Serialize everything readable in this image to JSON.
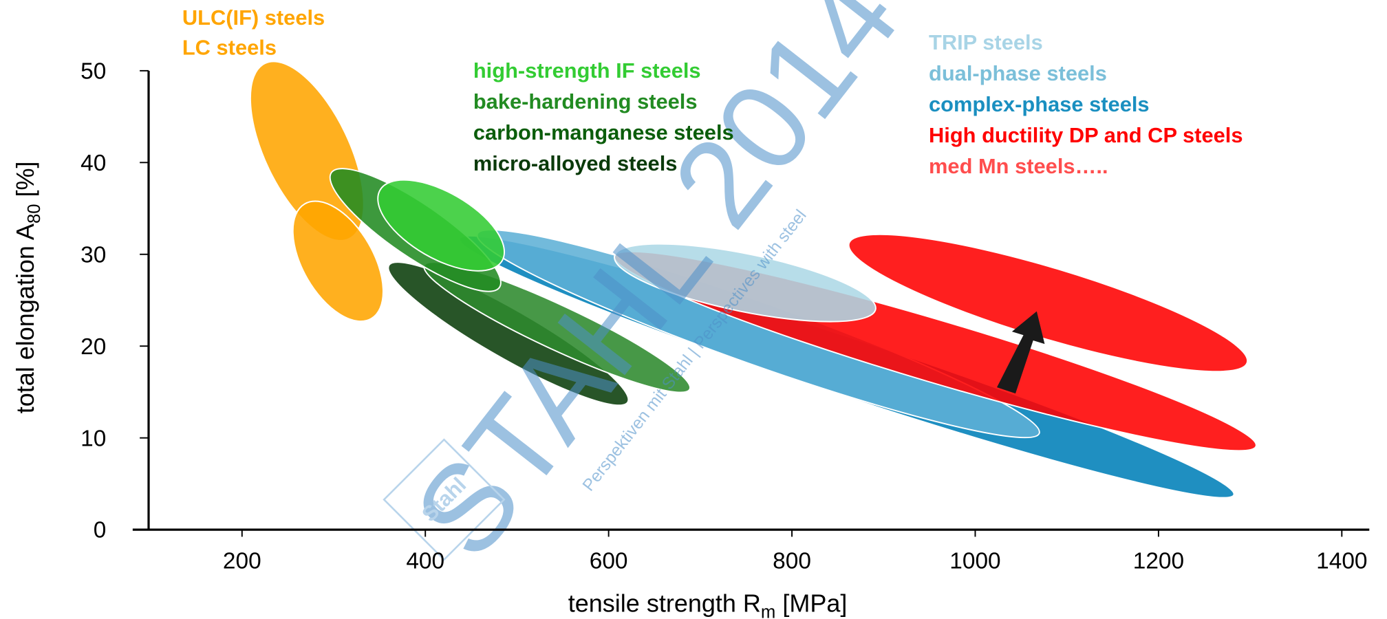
{
  "chart_data": {
    "type": "region",
    "x_label": {
      "text": "tensile strength  R",
      "sub": "m",
      "unit": "  [MPa]"
    },
    "y_label": {
      "text": "total elongation   A",
      "sub": "80",
      "unit": "  [%]"
    },
    "xlim": [
      100,
      1430
    ],
    "xticks": [
      200,
      400,
      600,
      800,
      1000,
      1200,
      1400
    ],
    "ylim": [
      0,
      50
    ],
    "yticks": [
      0,
      10,
      20,
      30,
      40,
      50
    ],
    "watermark": "STAHL 2014",
    "watermark_sub": "Perspektiven mit Stahl | Perspectives with steel",
    "logo": "Stahl",
    "regions": [
      {
        "name": "ULC(IF) steels",
        "label_color": "#ffa500",
        "color": "#ffa500",
        "x": [
          225.1,
          316.8
        ],
        "y": [
          50.8,
          31.7
        ],
        "minor": 92
      },
      {
        "name": "LC steels",
        "label_color": "#ffa500",
        "color": "#ffa500",
        "x": [
          268.5,
          341.0
        ],
        "y": [
          35.5,
          23.0
        ],
        "minor": 77
      },
      {
        "name": "high-strength IF steels",
        "label_color": "#33cc33",
        "color": "#33cc33",
        "x": [
          350.6,
          483.8
        ],
        "y": [
          37.0,
          29.3
        ],
        "minor": 72
      },
      {
        "name": "bake-hardening steels",
        "label_color": "#228b22",
        "color": "#228b22",
        "x": [
          297.5,
          480.9
        ],
        "y": [
          38.9,
          26.4
        ],
        "minor": 58
      },
      {
        "name": "carbon-manganese steels",
        "label_color": "#0b5d0b",
        "color": "#2d8a2d",
        "x": [
          398.9,
          688.5
        ],
        "y": [
          28.8,
          15.3
        ],
        "minor": 48
      },
      {
        "name": "micro-alloyed steels",
        "label_color": "#0a3a0a",
        "color": "#0a3d0a",
        "x": [
          360.3,
          620.9
        ],
        "y": [
          28.8,
          13.9
        ],
        "minor": 53
      },
      {
        "name": "TRIP steels",
        "label_color": "#a8d4e6",
        "color": "#add8e6",
        "x": [
          606.5,
          891.3
        ],
        "y": [
          29.8,
          24.0
        ],
        "minor": 63
      },
      {
        "name": "dual-phase steels",
        "label_color": "#7bbfd9",
        "color": "#5fb0d6",
        "x": [
          456.8,
          1069.9
        ],
        "y": [
          32.2,
          10.5
        ],
        "minor": 68
      },
      {
        "name": "complex-phase steels",
        "label_color": "#1a8fc0",
        "color": "#0080b8",
        "x": [
          437.5,
          1282.2
        ],
        "y": [
          31.7,
          3.8
        ],
        "minor": 63
      },
      {
        "name": "High ductility DP and CP steels",
        "label_color": "#ff0000",
        "color": "#ff0000",
        "x": [
          606.5,
          1306.4
        ],
        "y": [
          29.8,
          9.1
        ],
        "minor": 68
      },
      {
        "name": "med Mn steels…..",
        "label_color": "#ff4d4d",
        "color": "#ff0000",
        "x": [
          862.3,
          1296.7
        ],
        "y": [
          31.2,
          18.2
        ],
        "minor": 77
      }
    ]
  }
}
